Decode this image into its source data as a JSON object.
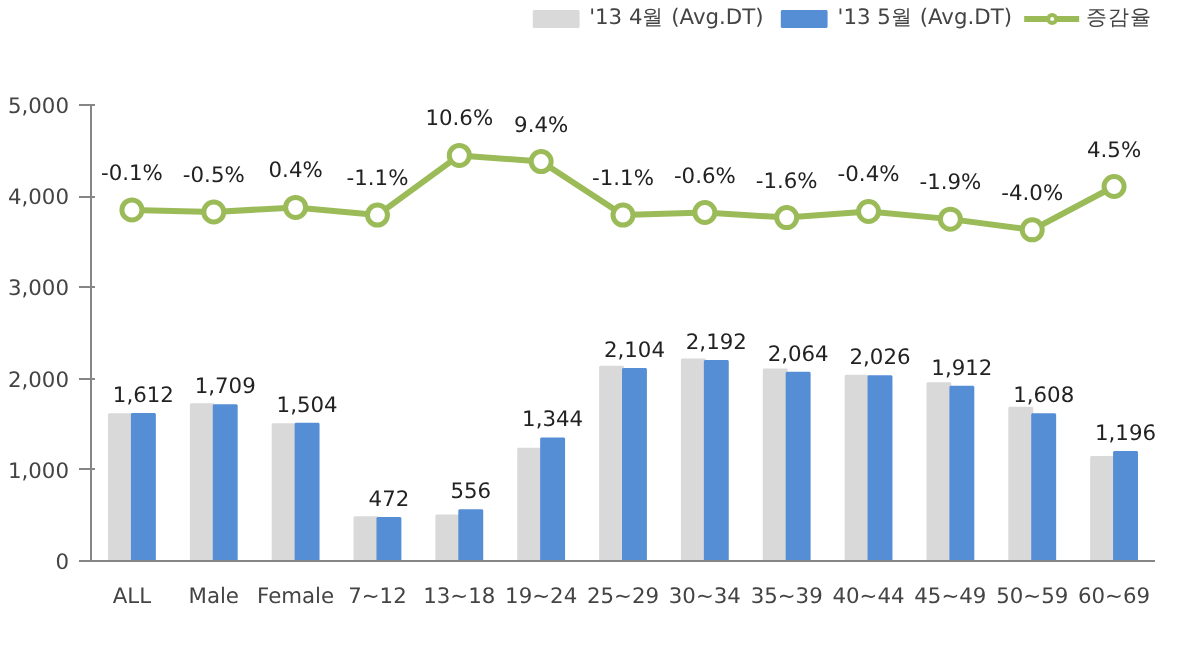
{
  "chart_data": {
    "type": "bar",
    "categories": [
      "ALL",
      "Male",
      "Female",
      "7~12",
      "13~18",
      "19~24",
      "25~29",
      "30~34",
      "35~39",
      "40~44",
      "45~49",
      "50~59",
      "60~69"
    ],
    "series": [
      {
        "name": "'13 4월 (Avg.DT)",
        "color": "#d9d9d9",
        "values": [
          1610,
          1720,
          1500,
          480,
          500,
          1230,
          2130,
          2210,
          2100,
          2030,
          1950,
          1680,
          1140
        ]
      },
      {
        "name": "'13 5월 (Avg.DT)",
        "color": "#558ed5",
        "values": [
          1612,
          1709,
          1504,
          472,
          556,
          1344,
          2104,
          2192,
          2064,
          2026,
          1912,
          1608,
          1196
        ],
        "value_labels": [
          "1,612",
          "1,709",
          "1,504",
          "472",
          "556",
          "1,344",
          "2,104",
          "2,192",
          "2,064",
          "2,026",
          "1,912",
          "1,608",
          "1,196"
        ]
      },
      {
        "name": "증감율",
        "type": "line",
        "axis": "y2",
        "color": "#9bbb59",
        "marker": "circle",
        "values": [
          -0.1,
          -0.5,
          0.4,
          -1.1,
          10.6,
          9.4,
          -1.1,
          -0.6,
          -1.6,
          -0.4,
          -1.9,
          -4.0,
          4.5
        ],
        "value_labels": [
          "-0.1%",
          "-0.5%",
          "0.4%",
          "-1.1%",
          "10.6%",
          "9.4%",
          "-1.1%",
          "-0.6%",
          "-1.6%",
          "-0.4%",
          "-1.9%",
          "-4.0%",
          "4.5%"
        ]
      }
    ],
    "ylim": [
      0,
      5000
    ],
    "yticks": [
      {
        "value": 0,
        "label": "0"
      },
      {
        "value": 1000,
        "label": "1,000"
      },
      {
        "value": 2000,
        "label": "2,000"
      },
      {
        "value": 3000,
        "label": "3,000"
      },
      {
        "value": 4000,
        "label": "4,000"
      },
      {
        "value": 5000,
        "label": "5,000"
      }
    ],
    "y2lim": [
      -69,
      20.5
    ],
    "grid": false,
    "legend": "top right"
  }
}
